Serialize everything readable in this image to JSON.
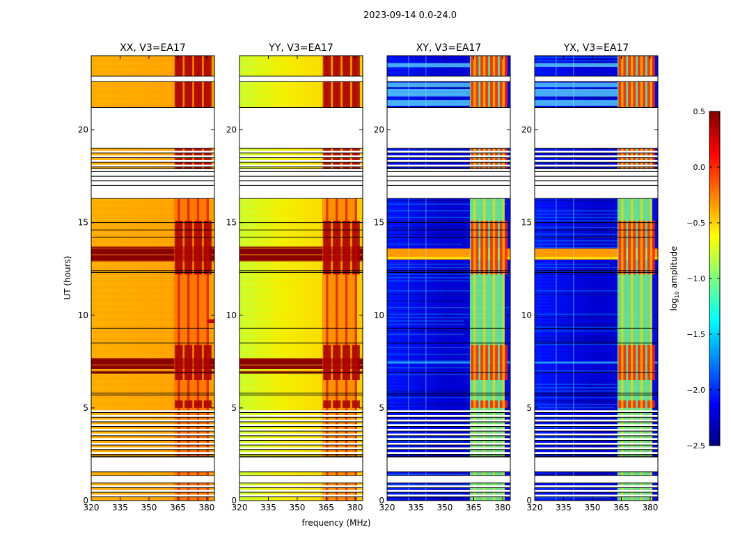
{
  "figure": {
    "suptitle": "2023-09-14 0.0-24.0",
    "xlabel": "frequency (MHz)",
    "ylabel": "UT (hours)"
  },
  "colorbar": {
    "label": "log10 amplitude",
    "label_base": "log",
    "label_sub": "10",
    "label_rest": " amplitude",
    "colormap": "jet",
    "range": [
      -2.5,
      0.5
    ],
    "tick_values": [
      -2.5,
      -2.0,
      -1.5,
      -1.0,
      -0.5,
      0.0,
      0.5
    ],
    "tick_labels": [
      "−2.5",
      "−2.0",
      "−1.5",
      "−1.0",
      "−0.5",
      "0.0",
      "0.5"
    ],
    "stops": [
      "#00007f",
      "#0000ff",
      "#007fff",
      "#00ffff",
      "#7fff7f",
      "#ffff00",
      "#ff7f00",
      "#ff0000",
      "#7f0000"
    ]
  },
  "chart_data": {
    "type": "heatmap",
    "x_range_mhz": [
      320,
      384
    ],
    "y_range_hours": [
      0,
      24
    ],
    "x_ticks": [
      320,
      335,
      350,
      365,
      380
    ],
    "y_ticks": [
      0,
      5,
      10,
      15,
      20
    ],
    "rfi_band_mhz": [
      363,
      381
    ],
    "rfi_channels_mhz": [
      363.5,
      368.5,
      373.5,
      378.5
    ],
    "gap_intervals_hours": [
      [
        0.95,
        1.35
      ],
      [
        1.55,
        2.35
      ],
      [
        16.3,
        17.9
      ],
      [
        19.0,
        21.2
      ],
      [
        22.6,
        22.9
      ]
    ],
    "panels": [
      {
        "title": "XX, V3=EA17",
        "kind": "parallel",
        "base_log_amp": -0.4
      },
      {
        "title": "YY, V3=EA17",
        "kind": "parallel",
        "base_log_amp": -0.6
      },
      {
        "title": "XY, V3=EA17",
        "kind": "cross",
        "base_log_amp": -2.1
      },
      {
        "title": "YX, V3=EA17",
        "kind": "cross",
        "base_log_amp": -2.1
      }
    ]
  }
}
